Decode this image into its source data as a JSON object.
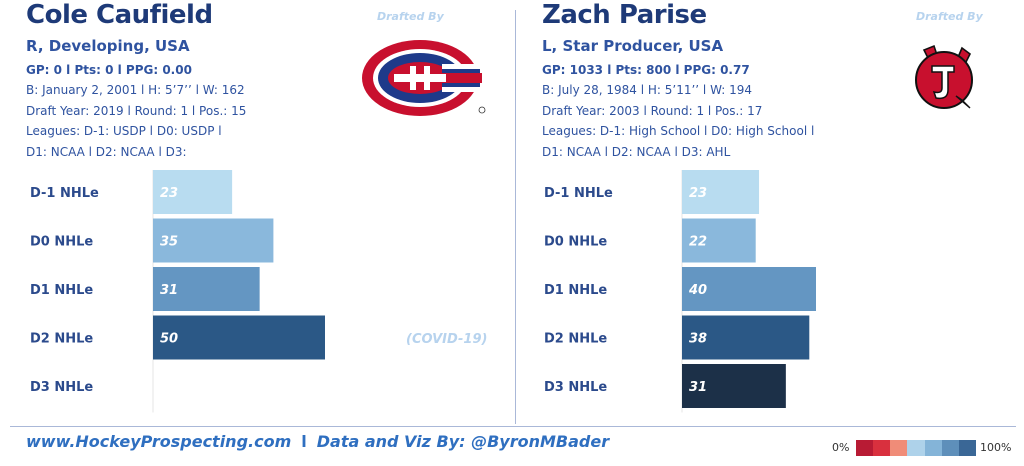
{
  "players": [
    {
      "name": "Cole Caufield",
      "drafted_by_label": "Drafted By",
      "team_logo": "montreal-canadiens-logo",
      "profile": "R, Developing, USA",
      "stats_line": "GP: 0 l Pts: 0 l PPG: 0.00",
      "bio_line": "B: January 2, 2001 l H: 5’7’’ l W: 162",
      "draft_line": "Draft Year: 2019 l Round: 1 l Pos.: 15",
      "leagues_line_1": "Leagues: D-1: USDP l D0: USDP l",
      "leagues_line_2": "D1: NCAA l D2: NCAA l D3:",
      "note": "(COVID-19)"
    },
    {
      "name": "Zach Parise",
      "drafted_by_label": "Drafted By",
      "team_logo": "new-jersey-devils-logo",
      "profile": "L, Star Producer, USA",
      "stats_line": "GP: 1033 l Pts: 800 l PPG: 0.77",
      "bio_line": "B: July 28, 1984 l H: 5’11’’ l W: 194",
      "draft_line": "Draft Year: 2003 l Round: 1 l Pos.: 17",
      "leagues_line_1": "Leagues: D-1: High School l D0: High School l",
      "leagues_line_2": "D1: NCAA l D2: NCAA l D3: AHL",
      "note": ""
    }
  ],
  "chart_data": [
    {
      "type": "bar",
      "orientation": "horizontal",
      "player": "Cole Caufield",
      "categories": [
        "D-1 NHLe",
        "D0 NHLe",
        "D1 NHLe",
        "D2 NHLe",
        "D3 NHLe"
      ],
      "values": [
        23,
        35,
        31,
        50,
        null
      ],
      "bar_colors": [
        "#b8dcf0",
        "#8ab8dc",
        "#6496c2",
        "#2b5886",
        "#1c3048"
      ],
      "grid": false,
      "xlim": [
        0,
        60
      ]
    },
    {
      "type": "bar",
      "orientation": "horizontal",
      "player": "Zach Parise",
      "categories": [
        "D-1 NHLe",
        "D0 NHLe",
        "D1 NHLe",
        "D2 NHLe",
        "D3 NHLe"
      ],
      "values": [
        23,
        22,
        40,
        38,
        31
      ],
      "bar_colors": [
        "#b8dcf0",
        "#8ab8dc",
        "#6496c2",
        "#2b5886",
        "#1c3048"
      ],
      "grid": false,
      "xlim": [
        0,
        60
      ]
    }
  ],
  "footer": {
    "site": "www.HockeyProspecting.com",
    "separator": "l",
    "credit": "Data and Viz By: @ByronMBader"
  },
  "legend": {
    "min_label": "0%",
    "max_label": "100%",
    "colors": [
      "#b81b34",
      "#d9303e",
      "#f08c78",
      "#aed2ea",
      "#84b4d8",
      "#5e8fba",
      "#3a6796"
    ]
  }
}
